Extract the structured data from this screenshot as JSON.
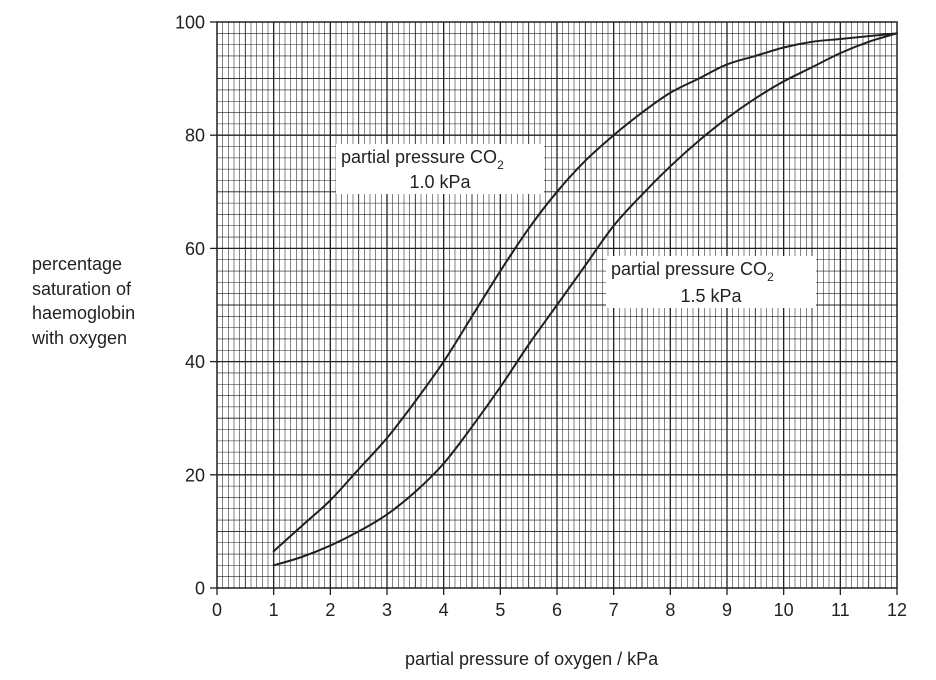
{
  "chart_data": {
    "type": "line",
    "xlabel": "partial pressure of oxygen / kPa",
    "ylabel_lines": [
      "percentage",
      "saturation of",
      "haemoglobin",
      "with oxygen"
    ],
    "xlim": [
      0,
      12
    ],
    "ylim": [
      0,
      100
    ],
    "x_ticks": [
      "0",
      "1",
      "2",
      "3",
      "4",
      "5",
      "6",
      "7",
      "8",
      "9",
      "10",
      "11",
      "12"
    ],
    "y_ticks": [
      "0",
      "20",
      "40",
      "60",
      "80",
      "100"
    ],
    "grid": true,
    "series": [
      {
        "name": "partial pressure CO2 1.0 kPa",
        "x": [
          1,
          1.5,
          2,
          2.5,
          3,
          3.5,
          4,
          4.5,
          5,
          5.5,
          6,
          6.5,
          7,
          7.5,
          8,
          8.5,
          9,
          9.5,
          10,
          10.5,
          11,
          11.5,
          12
        ],
        "y": [
          6.5,
          11,
          15.5,
          21,
          26.5,
          33,
          40,
          48,
          56,
          63.5,
          70,
          75.5,
          80,
          84,
          87.5,
          90,
          92.5,
          94,
          95.5,
          96.5,
          97,
          97.5,
          98
        ]
      },
      {
        "name": "partial pressure CO2 1.5 kPa",
        "x": [
          1,
          1.5,
          2,
          2.5,
          3,
          3.5,
          4,
          4.5,
          5,
          5.5,
          6,
          6.5,
          7,
          7.5,
          8,
          8.5,
          9,
          9.5,
          10,
          10.5,
          11,
          11.5,
          12
        ],
        "y": [
          4,
          5.5,
          7.5,
          10,
          13,
          17,
          22,
          28.5,
          35.5,
          43,
          50,
          57,
          64,
          69.5,
          74.5,
          79,
          83,
          86.5,
          89.5,
          92,
          94.5,
          96.5,
          98
        ]
      }
    ],
    "annotations": [
      {
        "line1": "partial pressure CO",
        "sub": "2",
        "line2": "1.0 kPa"
      },
      {
        "line1": "partial pressure CO",
        "sub": "2",
        "line2": "1.5 kPa"
      }
    ]
  }
}
